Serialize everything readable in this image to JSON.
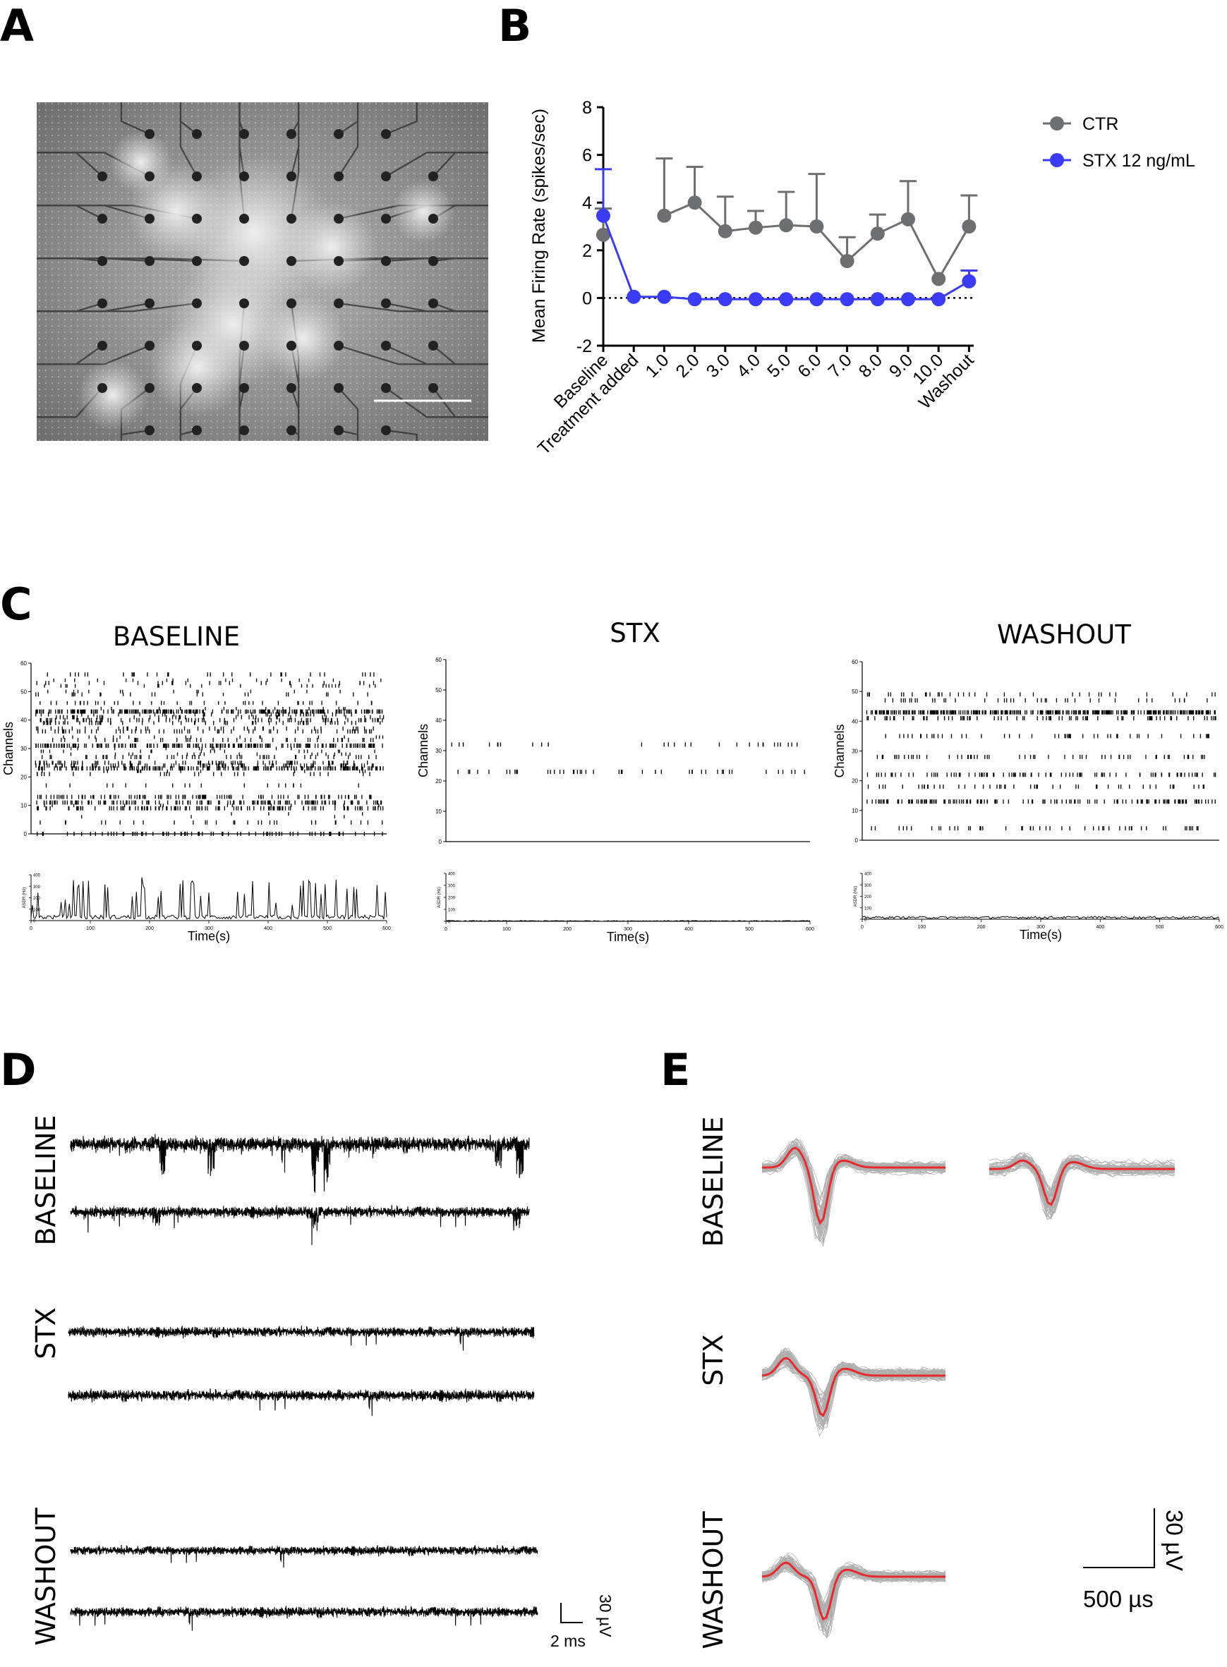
{
  "panels": {
    "A": {
      "letter": "A"
    },
    "B": {
      "letter": "B"
    },
    "C": {
      "letter": "C"
    },
    "D": {
      "letter": "D"
    },
    "E": {
      "letter": "E"
    }
  },
  "panel_c": {
    "titles": [
      "BASELINE",
      "STX",
      "WASHOUT"
    ],
    "raster_ylabel": "Channels",
    "raster_yticks": [
      "0",
      "10",
      "20",
      "30",
      "40",
      "50",
      "60"
    ],
    "rate_yticks": [
      "0",
      "100",
      "200",
      "300",
      "400"
    ],
    "rate_ylabel": "ASDR (Hz)",
    "xticks": [
      "0",
      "100",
      "200",
      "300",
      "400",
      "500",
      "600"
    ],
    "xlabel": "Time(s)"
  },
  "panel_d": {
    "row_labels": [
      "BASELINE",
      "STX",
      "WASHOUT"
    ],
    "scale_time": "2 ms",
    "scale_amp": "30 µV"
  },
  "panel_e": {
    "row_labels": [
      "BASELINE",
      "STX",
      "WASHOUT"
    ],
    "scale_time": "500 µs",
    "scale_amp": "30 µV"
  },
  "chart_data": [
    {
      "type": "line",
      "panel": "B",
      "ylabel": "Mean Firing Rate (spikes/sec)",
      "ylim": [
        -2,
        8
      ],
      "yticks": [
        -2,
        0,
        2,
        4,
        6,
        8
      ],
      "categories": [
        "Baseline",
        "Treatment added",
        "1.0",
        "2.0",
        "3.0",
        "4.0",
        "5.0",
        "6.0",
        "7.0",
        "8.0",
        "9.0",
        "10.0",
        "Washout"
      ],
      "reference_line": 0,
      "legend_position": "top-right",
      "series": [
        {
          "name": "CTR",
          "color": "#6d6e71",
          "values": [
            2.65,
            null,
            3.45,
            4.0,
            2.8,
            2.95,
            3.05,
            3.0,
            1.55,
            2.7,
            3.3,
            0.8,
            3.0
          ],
          "error_upper": [
            3.75,
            null,
            5.85,
            5.5,
            4.25,
            3.65,
            4.45,
            5.2,
            2.55,
            3.5,
            4.9,
            null,
            4.3
          ]
        },
        {
          "name": "STX 12 ng/mL",
          "color": "#3b3bf5",
          "values": [
            3.45,
            0.05,
            0.05,
            -0.05,
            -0.05,
            -0.05,
            -0.05,
            -0.05,
            -0.05,
            -0.05,
            -0.05,
            -0.05,
            0.7
          ],
          "error_upper": [
            5.4,
            null,
            null,
            null,
            null,
            null,
            null,
            null,
            null,
            null,
            null,
            null,
            1.15
          ]
        }
      ]
    }
  ]
}
